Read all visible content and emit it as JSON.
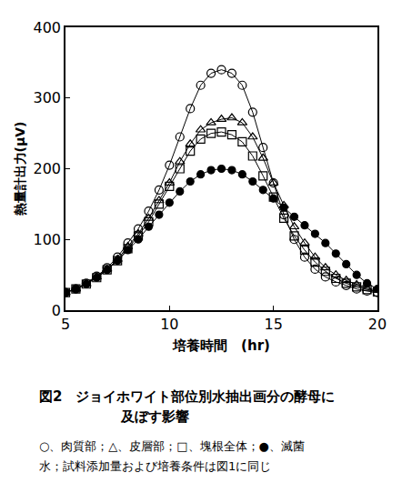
{
  "chart_data": {
    "type": "line",
    "x_label": "培養時間　(hr)",
    "y_label": "熱量計出力(μV)",
    "annotations": [
      "図2　ジョイホワイト部位別水抽出画分の酵母に",
      "及ぼす影響",
      "○、肉質部；△、皮層部；□、塊根全体；●、滅菌",
      "水；試料添加量および培養条件は図1に同じ"
    ],
    "x": [
      5,
      5.5,
      6,
      6.5,
      7,
      7.5,
      8,
      8.5,
      9,
      9.5,
      10,
      10.5,
      11,
      11.5,
      12,
      12.5,
      13,
      13.5,
      14,
      14.5,
      15,
      15.5,
      16,
      16.5,
      17,
      17.5,
      18,
      18.5,
      19,
      19.5,
      20
    ],
    "series": [
      {
        "name": "肉質部",
        "color": "#000000",
        "marker": "circle-open",
        "values": [
          25,
          30,
          38,
          48,
          60,
          75,
          95,
          115,
          140,
          170,
          205,
          245,
          285,
          318,
          335,
          340,
          335,
          318,
          280,
          230,
          180,
          135,
          100,
          75,
          58,
          47,
          40,
          35,
          30,
          27,
          25
        ]
      },
      {
        "name": "皮層部",
        "color": "#000000",
        "marker": "triangle-up-open",
        "values": [
          25,
          30,
          37,
          47,
          58,
          72,
          90,
          108,
          130,
          155,
          180,
          210,
          235,
          255,
          265,
          270,
          272,
          265,
          245,
          215,
          180,
          148,
          118,
          95,
          75,
          60,
          50,
          42,
          36,
          31,
          28
        ]
      },
      {
        "name": "塊根全体",
        "color": "#000000",
        "marker": "square-open",
        "values": [
          25,
          30,
          37,
          46,
          57,
          70,
          87,
          105,
          125,
          150,
          175,
          200,
          225,
          242,
          250,
          252,
          248,
          238,
          218,
          190,
          160,
          130,
          105,
          85,
          68,
          55,
          45,
          38,
          33,
          29,
          26
        ]
      },
      {
        "name": "滅菌水",
        "color": "#000000",
        "marker": "circle",
        "values": [
          25,
          30,
          37,
          46,
          57,
          70,
          85,
          100,
          118,
          135,
          152,
          168,
          182,
          192,
          198,
          200,
          198,
          192,
          182,
          170,
          158,
          145,
          132,
          120,
          108,
          95,
          80,
          65,
          50,
          38,
          30
        ]
      }
    ],
    "xlim": [
      5,
      20
    ],
    "xticks": [
      5,
      10,
      15,
      20
    ],
    "ylim": [
      0,
      400
    ],
    "yticks": [
      0,
      100,
      200,
      300,
      400
    ],
    "grid": false,
    "legend": "none"
  }
}
